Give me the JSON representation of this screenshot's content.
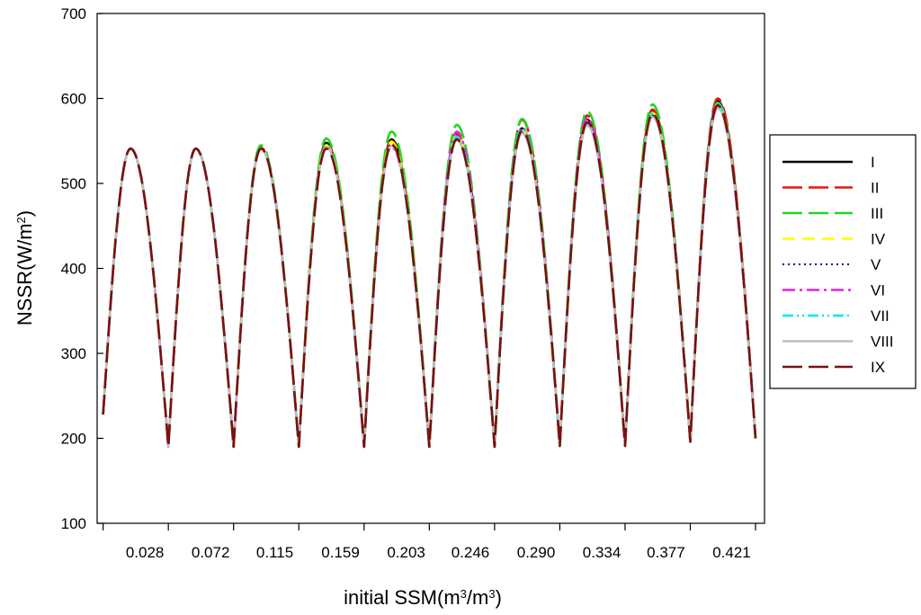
{
  "chart_data": {
    "type": "line",
    "xlabel_main": "initial SSM(m",
    "xlabel_sup1": "3",
    "xlabel_mid": "/m",
    "xlabel_sup2": "3",
    "xlabel_end": ")",
    "ylabel_main": "NSSR(W/m",
    "ylabel_sup": "2",
    "ylabel_end": ")",
    "ylim": [
      100,
      700
    ],
    "yticks": [
      100,
      200,
      300,
      400,
      500,
      600,
      700
    ],
    "xlim": [
      -0.004,
      0.443
    ],
    "xtick_labels": [
      "0.028",
      "0.072",
      "0.115",
      "0.159",
      "0.203",
      "0.246",
      "0.290",
      "0.334",
      "0.377",
      "0.421"
    ],
    "xtick_values": [
      0.028,
      0.072,
      0.115,
      0.159,
      0.203,
      0.246,
      0.29,
      0.334,
      0.377,
      0.421
    ],
    "grid": false,
    "legend_position": "right",
    "cycles": {
      "count": 10,
      "start_x": 0.0,
      "period": 0.0437,
      "start_y": 228,
      "end_y": 200,
      "min": [
        190,
        190,
        190,
        190,
        190,
        190,
        191,
        191,
        196,
        200
      ],
      "max_by_series": {
        "I": [
          541,
          541,
          541,
          548,
          552,
          558,
          565,
          575,
          586,
          597
        ],
        "II": [
          541,
          541,
          542,
          546,
          550,
          558,
          575,
          580,
          587,
          600
        ],
        "III": [
          541,
          541,
          545,
          553,
          561,
          569,
          576,
          585,
          593,
          595
        ],
        "IV": [
          541,
          541,
          541,
          545,
          549,
          557,
          564,
          573,
          583,
          593
        ],
        "V": [
          541,
          541,
          541,
          544,
          545,
          552,
          560,
          570,
          580,
          590
        ],
        "VI": [
          541,
          541,
          541,
          543,
          543,
          561,
          566,
          577,
          580,
          589
        ],
        "VII": [
          541,
          541,
          541,
          543,
          545,
          555,
          565,
          570,
          582,
          593
        ],
        "VIII": [
          541,
          541,
          541,
          543,
          544,
          551,
          559,
          568,
          578,
          589
        ],
        "IX": [
          541,
          541,
          541,
          541,
          546,
          552,
          562,
          572,
          582,
          592
        ]
      }
    },
    "series": [
      {
        "name": "I",
        "color": "#000000",
        "dash": "solid"
      },
      {
        "name": "II",
        "color": "#e8150f",
        "dash": "long-dash"
      },
      {
        "name": "III",
        "color": "#22d622",
        "dash": "long-dash"
      },
      {
        "name": "IV",
        "color": "#ffff00",
        "dash": "medium-dash"
      },
      {
        "name": "V",
        "color": "#0000a0",
        "dash": "dot"
      },
      {
        "name": "VI",
        "color": "#e81ee8",
        "dash": "dash-dot"
      },
      {
        "name": "VII",
        "color": "#00e6e6",
        "dash": "dash-dot-dot"
      },
      {
        "name": "VIII",
        "color": "#bdbdbd",
        "dash": "solid"
      },
      {
        "name": "IX",
        "color": "#7a1010",
        "dash": "long-dash"
      }
    ]
  }
}
